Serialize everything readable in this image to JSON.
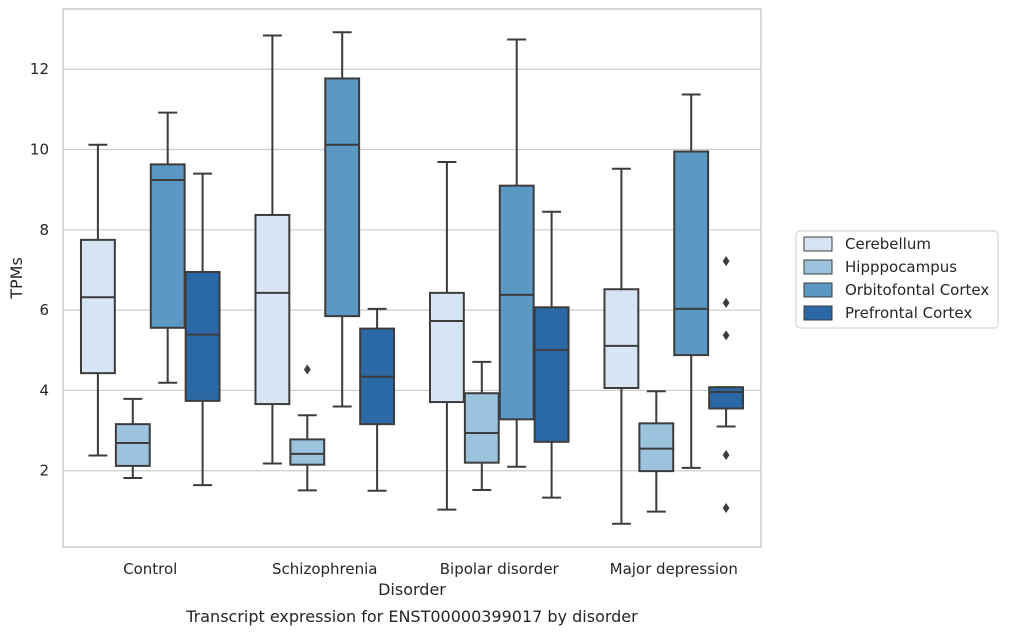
{
  "chart_data": {
    "type": "box",
    "caption": "Transcript expression for ENST00000399017 by disorder",
    "xlabel": "Disorder",
    "ylabel": "TPMs",
    "ylim": [
      0.1,
      13.5
    ],
    "yticks": [
      2,
      4,
      6,
      8,
      10,
      12
    ],
    "grid": "horizontal",
    "legend_position": "right",
    "categories": [
      "Control",
      "Schizophrenia",
      "Bipolar disorder",
      "Major depression"
    ],
    "series": [
      {
        "name": "Cerebellum",
        "color": "#d6e4f3",
        "boxes": [
          {
            "whisker_low": 2.38,
            "q1": 4.43,
            "median": 6.32,
            "q3": 7.75,
            "whisker_high": 10.12,
            "outliers": []
          },
          {
            "whisker_low": 2.18,
            "q1": 3.66,
            "median": 6.43,
            "q3": 8.37,
            "whisker_high": 12.84,
            "outliers": []
          },
          {
            "whisker_low": 1.03,
            "q1": 3.71,
            "median": 5.73,
            "q3": 6.43,
            "whisker_high": 9.69,
            "outliers": []
          },
          {
            "whisker_low": 0.68,
            "q1": 4.06,
            "median": 5.11,
            "q3": 6.52,
            "whisker_high": 9.52,
            "outliers": []
          }
        ]
      },
      {
        "name": "Hipppocampus",
        "color": "#9bc3dd",
        "boxes": [
          {
            "whisker_low": 1.82,
            "q1": 2.12,
            "median": 2.69,
            "q3": 3.16,
            "whisker_high": 3.79,
            "outliers": []
          },
          {
            "whisker_low": 1.51,
            "q1": 2.15,
            "median": 2.42,
            "q3": 2.78,
            "whisker_high": 3.38,
            "outliers": [
              4.52
            ]
          },
          {
            "whisker_low": 1.52,
            "q1": 2.2,
            "median": 2.94,
            "q3": 3.93,
            "whisker_high": 4.71,
            "outliers": []
          },
          {
            "whisker_low": 0.98,
            "q1": 1.99,
            "median": 2.55,
            "q3": 3.18,
            "whisker_high": 3.98,
            "outliers": []
          }
        ]
      },
      {
        "name": "Orbitofontal Cortex",
        "color": "#5b98c3",
        "boxes": [
          {
            "whisker_low": 4.19,
            "q1": 5.56,
            "median": 9.24,
            "q3": 9.63,
            "whisker_high": 10.92,
            "outliers": []
          },
          {
            "whisker_low": 3.6,
            "q1": 5.85,
            "median": 10.12,
            "q3": 11.77,
            "whisker_high": 12.92,
            "outliers": []
          },
          {
            "whisker_low": 2.1,
            "q1": 3.28,
            "median": 6.38,
            "q3": 9.1,
            "whisker_high": 12.74,
            "outliers": []
          },
          {
            "whisker_low": 2.07,
            "q1": 4.88,
            "median": 6.03,
            "q3": 9.95,
            "whisker_high": 11.37,
            "outliers": []
          }
        ]
      },
      {
        "name": "Prefrontal Cortex",
        "color": "#2b69a6",
        "boxes": [
          {
            "whisker_low": 1.64,
            "q1": 3.74,
            "median": 5.39,
            "q3": 6.95,
            "whisker_high": 9.4,
            "outliers": []
          },
          {
            "whisker_low": 1.5,
            "q1": 3.16,
            "median": 4.34,
            "q3": 5.54,
            "whisker_high": 6.03,
            "outliers": []
          },
          {
            "whisker_low": 1.33,
            "q1": 2.72,
            "median": 5.01,
            "q3": 6.07,
            "whisker_high": 8.45,
            "outliers": []
          },
          {
            "whisker_low": 3.1,
            "q1": 3.55,
            "median": 3.96,
            "q3": 4.08,
            "whisker_high": 4.08,
            "outliers": [
              7.22,
              6.18,
              5.37,
              2.39,
              1.07
            ]
          }
        ]
      }
    ]
  }
}
